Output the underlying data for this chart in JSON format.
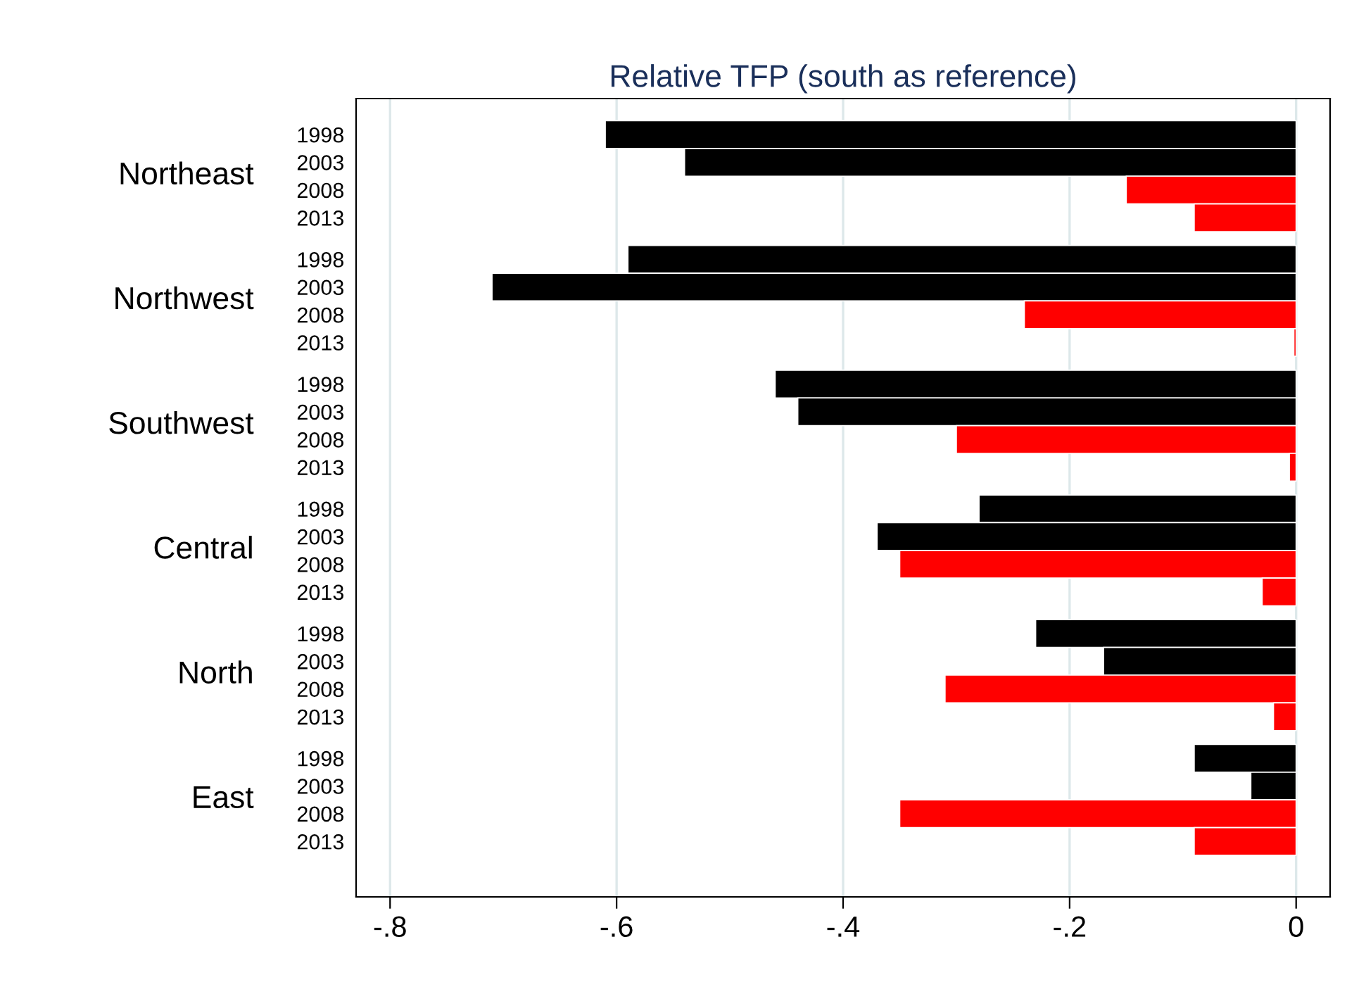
{
  "chart_data": {
    "type": "bar",
    "orientation": "horizontal",
    "title": "Relative TFP (south as reference)",
    "categories": [
      "1998",
      "2003",
      "2008",
      "2013",
      "1998",
      "2003",
      "2008",
      "2013",
      "1998",
      "2003",
      "2008",
      "2013",
      "1998",
      "2003",
      "2008",
      "2013",
      "1998",
      "2003",
      "2008",
      "2013",
      "1998",
      "2003",
      "2008",
      "2013"
    ],
    "values": [
      -0.61,
      -0.54,
      -0.15,
      -0.09,
      -0.59,
      -0.71,
      -0.24,
      -0.002,
      -0.46,
      -0.44,
      -0.3,
      -0.006,
      -0.28,
      -0.37,
      -0.35,
      -0.03,
      -0.23,
      -0.17,
      -0.31,
      -0.02,
      -0.09,
      -0.04,
      -0.35,
      -0.09
    ],
    "colors": [
      "#000000",
      "#000000",
      "#ff0000",
      "#ff0000",
      "#000000",
      "#000000",
      "#ff0000",
      "#ff0000",
      "#000000",
      "#000000",
      "#ff0000",
      "#ff0000",
      "#000000",
      "#000000",
      "#ff0000",
      "#ff0000",
      "#000000",
      "#000000",
      "#ff0000",
      "#ff0000",
      "#000000",
      "#000000",
      "#ff0000",
      "#ff0000"
    ],
    "annotations": [
      "Northeast",
      "Northwest",
      "Southwest",
      "Central",
      "North",
      "East"
    ],
    "xlim": [
      -0.83,
      0.03
    ],
    "xticks": [
      {
        "value": -0.8,
        "label": "-.8"
      },
      {
        "value": -0.6,
        "label": "-.6"
      },
      {
        "value": -0.4,
        "label": "-.4"
      },
      {
        "value": -0.2,
        "label": "-.2"
      },
      0
    ],
    "grid": "x",
    "legend": false
  }
}
